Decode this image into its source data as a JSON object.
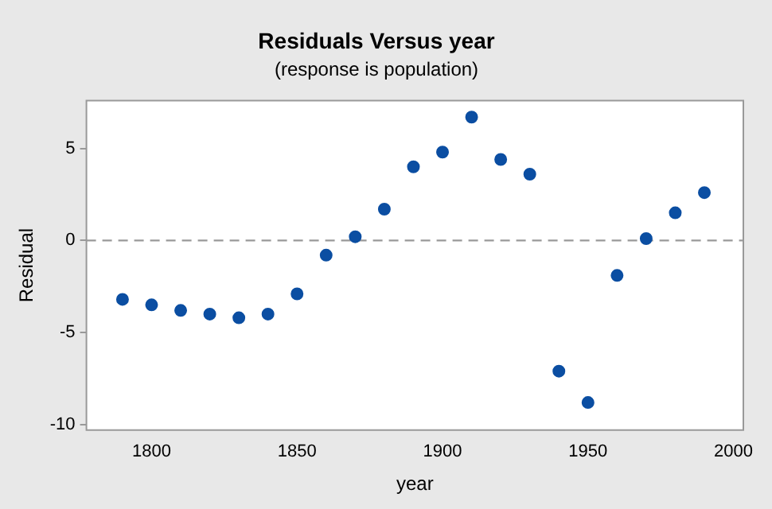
{
  "chart_data": {
    "type": "scatter",
    "title": "Residuals Versus year",
    "subtitle": "(response is population)",
    "xlabel": "year",
    "ylabel": "Residual",
    "x": [
      1790,
      1800,
      1810,
      1820,
      1830,
      1840,
      1850,
      1860,
      1870,
      1880,
      1890,
      1900,
      1910,
      1920,
      1930,
      1940,
      1950,
      1960,
      1970,
      1980,
      1990
    ],
    "series": [
      {
        "color": "#0b4ea2",
        "values": [
          -3.2,
          -3.5,
          -3.8,
          -4.0,
          -4.2,
          -4.0,
          -2.9,
          -0.8,
          0.2,
          1.7,
          4.0,
          4.8,
          6.7,
          4.4,
          3.6,
          -7.1,
          -8.8,
          -1.9,
          0.1,
          1.5,
          2.6
        ]
      }
    ],
    "xlim": [
      1777.6,
      2003.4
    ],
    "xticks": [
      1800,
      1850,
      1900,
      1950,
      2000
    ],
    "ylim": [
      -10.3,
      7.6
    ],
    "yticks": [
      -10,
      -5,
      0,
      5
    ],
    "ref_lines": [
      {
        "axis": "y",
        "value": 0,
        "color": "#999999",
        "line_style": "dashed"
      }
    ],
    "marker": "circle",
    "grid": false,
    "legend": false
  }
}
